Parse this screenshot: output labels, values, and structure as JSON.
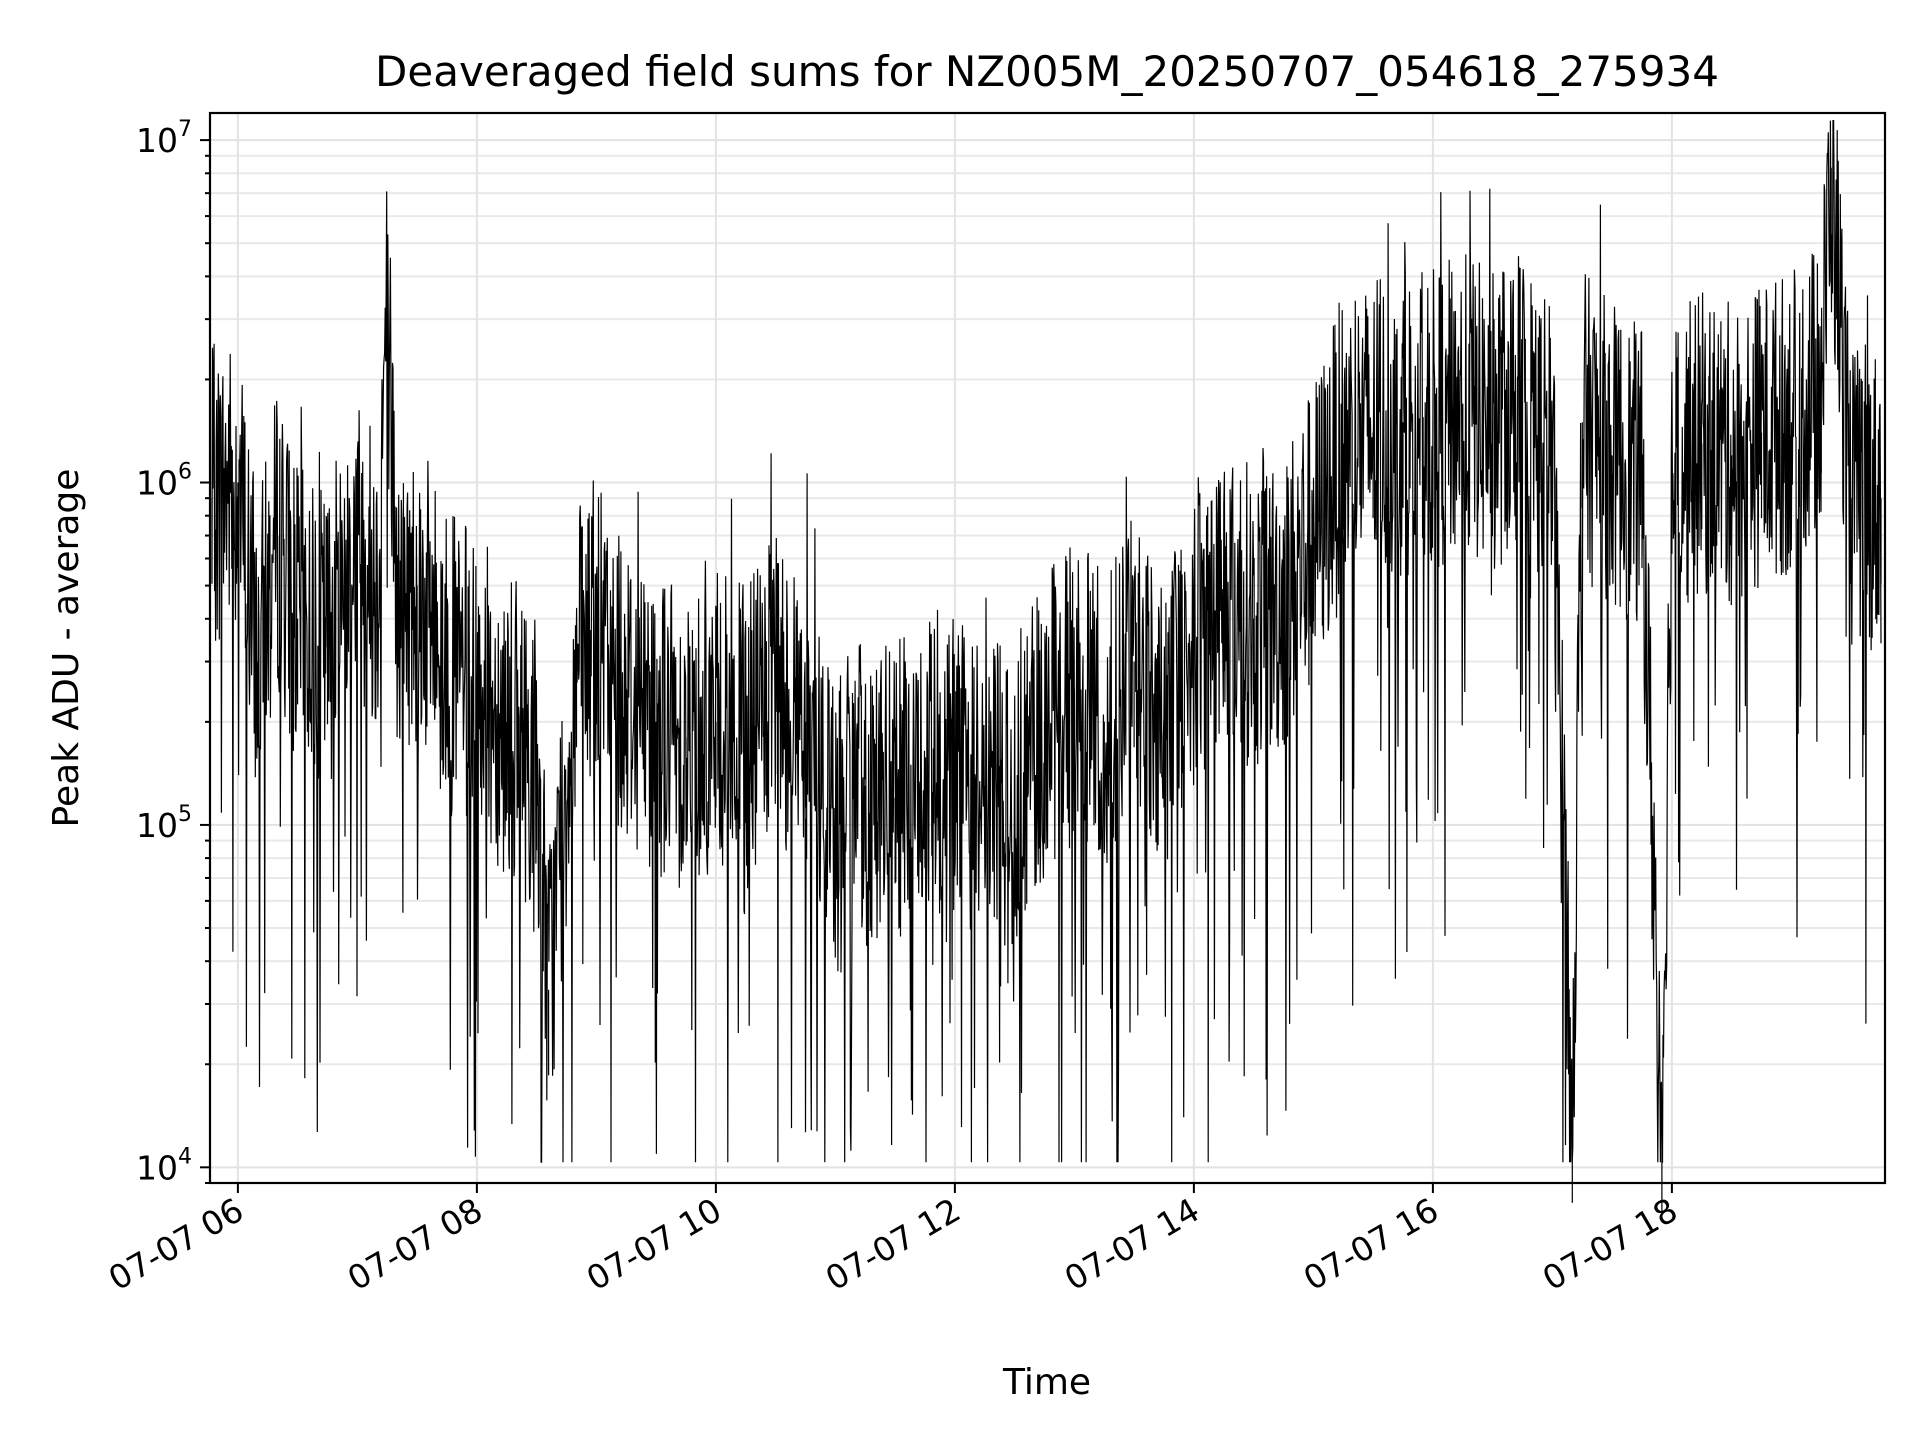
{
  "chart_data": {
    "type": "line",
    "title": "Deaveraged field sums for NZ005M_20250707_054618_275934",
    "xlabel": "Time",
    "ylabel": "Peak ADU - average",
    "yscale": "log",
    "ylim": [
      9000,
      12000000
    ],
    "xlim": [
      "2025-07-07 05:46",
      "2025-07-07 19:47"
    ],
    "grid": true,
    "x_ticks": [
      {
        "value": "2025-07-07 06:00",
        "label": "07-07 06"
      },
      {
        "value": "2025-07-07 08:00",
        "label": "07-07 08"
      },
      {
        "value": "2025-07-07 10:00",
        "label": "07-07 10"
      },
      {
        "value": "2025-07-07 12:00",
        "label": "07-07 12"
      },
      {
        "value": "2025-07-07 14:00",
        "label": "07-07 14"
      },
      {
        "value": "2025-07-07 16:00",
        "label": "07-07 16"
      },
      {
        "value": "2025-07-07 18:00",
        "label": "07-07 18"
      }
    ],
    "y_ticks": [
      {
        "value": 10000,
        "base": "10",
        "exp": "4"
      },
      {
        "value": 100000,
        "base": "10",
        "exp": "5"
      },
      {
        "value": 1000000,
        "base": "10",
        "exp": "6"
      },
      {
        "value": 10000000,
        "base": "10",
        "exp": "7"
      }
    ],
    "series": [
      {
        "color": "#000000",
        "x": [
          "2025-07-07 05:47",
          "2025-07-07 06:00",
          "2025-07-07 06:10",
          "2025-07-07 06:20",
          "2025-07-07 06:30",
          "2025-07-07 06:45",
          "2025-07-07 07:00",
          "2025-07-07 07:10",
          "2025-07-07 07:15",
          "2025-07-07 07:20",
          "2025-07-07 07:30",
          "2025-07-07 07:45",
          "2025-07-07 08:00",
          "2025-07-07 08:15",
          "2025-07-07 08:30",
          "2025-07-07 08:36",
          "2025-07-07 08:50",
          "2025-07-07 09:00",
          "2025-07-07 09:15",
          "2025-07-07 09:30",
          "2025-07-07 09:45",
          "2025-07-07 10:00",
          "2025-07-07 10:15",
          "2025-07-07 10:30",
          "2025-07-07 10:45",
          "2025-07-07 11:00",
          "2025-07-07 11:15",
          "2025-07-07 11:30",
          "2025-07-07 11:45",
          "2025-07-07 12:00",
          "2025-07-07 12:15",
          "2025-07-07 12:30",
          "2025-07-07 12:45",
          "2025-07-07 13:00",
          "2025-07-07 13:15",
          "2025-07-07 13:30",
          "2025-07-07 13:45",
          "2025-07-07 14:00",
          "2025-07-07 14:15",
          "2025-07-07 14:30",
          "2025-07-07 14:45",
          "2025-07-07 15:00",
          "2025-07-07 15:15",
          "2025-07-07 15:30",
          "2025-07-07 15:45",
          "2025-07-07 16:00",
          "2025-07-07 16:15",
          "2025-07-07 16:30",
          "2025-07-07 16:45",
          "2025-07-07 17:00",
          "2025-07-07 17:10",
          "2025-07-07 17:15",
          "2025-07-07 17:30",
          "2025-07-07 17:45",
          "2025-07-07 17:55",
          "2025-07-07 18:00",
          "2025-07-07 18:15",
          "2025-07-07 18:30",
          "2025-07-07 18:45",
          "2025-07-07 19:00",
          "2025-07-07 19:15",
          "2025-07-07 19:20",
          "2025-07-07 19:30",
          "2025-07-07 19:45"
        ],
        "y": [
          900000,
          1000000,
          300000,
          700000,
          400000,
          350000,
          700000,
          500000,
          3800000,
          400000,
          500000,
          300000,
          250000,
          200000,
          150000,
          33000,
          300000,
          350000,
          250000,
          200000,
          180000,
          200000,
          180000,
          250000,
          200000,
          100000,
          130000,
          120000,
          140000,
          150000,
          130000,
          120000,
          200000,
          250000,
          200000,
          300000,
          200000,
          350000,
          500000,
          400000,
          450000,
          700000,
          1300000,
          1400000,
          1500000,
          1500000,
          1700000,
          1500000,
          1800000,
          1200000,
          14000,
          1500000,
          1200000,
          1000000,
          13000,
          1100000,
          1300000,
          1200000,
          1400000,
          1500000,
          1900000,
          8300000,
          900000,
          900000
        ]
      }
    ]
  }
}
